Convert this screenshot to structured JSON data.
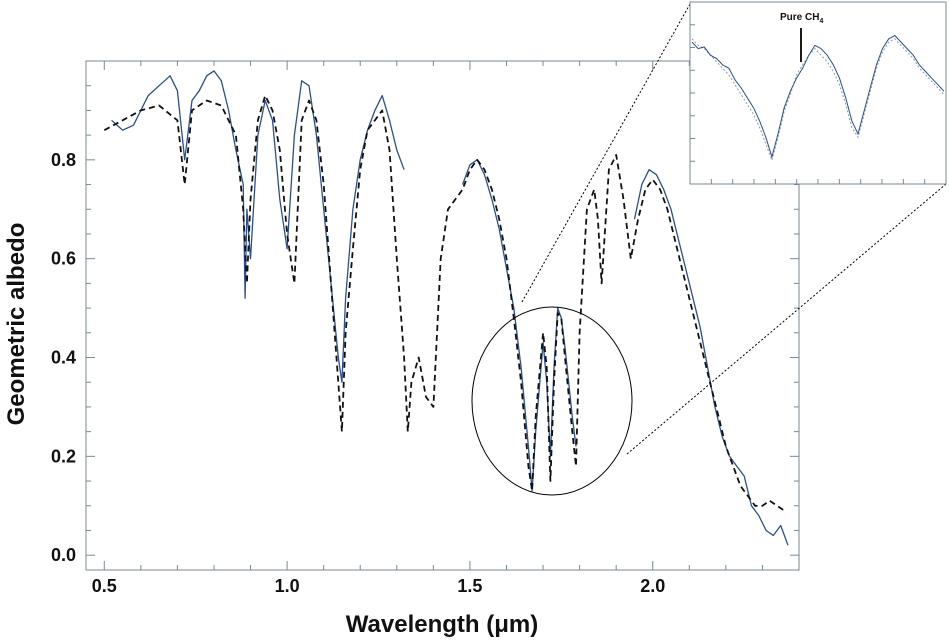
{
  "chart_data": {
    "type": "line",
    "xlabel": "Wavelength (μm)",
    "ylabel": "Geometric albedo",
    "xlim": [
      0.45,
      2.4
    ],
    "ylim": [
      -0.03,
      1.0
    ],
    "x_ticks": [
      0.5,
      1.0,
      1.5,
      2.0
    ],
    "x_tick_labels": [
      "0.5",
      "1.0",
      "1.5",
      "2.0"
    ],
    "y_ticks": [
      0.0,
      0.2,
      0.4,
      0.6,
      0.8
    ],
    "y_tick_labels": [
      "0.0",
      "0.2",
      "0.4",
      "0.6",
      "0.8"
    ],
    "grid": false,
    "colors": {
      "observed": "#2b4f8f",
      "model": "#111111"
    },
    "series": [
      {
        "style": "solid",
        "segments": [
          {
            "x": [
              0.52,
              0.55,
              0.58,
              0.6,
              0.62,
              0.65,
              0.68,
              0.7,
              0.72,
              0.74,
              0.76,
              0.78,
              0.8,
              0.82,
              0.84,
              0.86,
              0.88,
              0.885,
              0.89,
              0.9,
              0.92,
              0.94,
              0.96,
              0.98,
              1.0,
              1.02,
              1.04,
              1.06,
              1.08,
              1.1,
              1.12,
              1.14,
              1.15,
              1.16,
              1.18,
              1.2,
              1.22,
              1.24,
              1.26,
              1.28,
              1.3,
              1.32
            ],
            "y": [
              0.88,
              0.86,
              0.87,
              0.9,
              0.93,
              0.95,
              0.97,
              0.94,
              0.8,
              0.92,
              0.94,
              0.97,
              0.98,
              0.96,
              0.9,
              0.82,
              0.75,
              0.52,
              0.7,
              0.6,
              0.85,
              0.92,
              0.88,
              0.72,
              0.62,
              0.85,
              0.96,
              0.95,
              0.85,
              0.7,
              0.55,
              0.4,
              0.35,
              0.52,
              0.7,
              0.8,
              0.86,
              0.9,
              0.93,
              0.88,
              0.82,
              0.78
            ]
          },
          {
            "x": [
              1.48,
              1.5,
              1.52,
              1.54,
              1.56,
              1.58,
              1.6,
              1.62,
              1.64,
              1.66,
              1.67,
              1.68,
              1.7,
              1.71,
              1.72,
              1.73,
              1.74,
              1.75,
              1.76,
              1.78,
              1.79
            ],
            "y": [
              0.75,
              0.79,
              0.8,
              0.77,
              0.72,
              0.66,
              0.58,
              0.5,
              0.38,
              0.22,
              0.13,
              0.25,
              0.43,
              0.35,
              0.2,
              0.38,
              0.5,
              0.48,
              0.42,
              0.28,
              0.22
            ]
          },
          {
            "x": [
              1.95,
              1.97,
              1.99,
              2.01,
              2.03,
              2.05,
              2.07,
              2.09,
              2.11,
              2.13,
              2.15,
              2.17,
              2.19,
              2.21,
              2.23,
              2.25,
              2.27,
              2.29,
              2.31,
              2.33,
              2.35,
              2.37
            ],
            "y": [
              0.68,
              0.75,
              0.78,
              0.77,
              0.74,
              0.7,
              0.64,
              0.58,
              0.52,
              0.46,
              0.38,
              0.3,
              0.24,
              0.2,
              0.18,
              0.16,
              0.1,
              0.08,
              0.05,
              0.04,
              0.06,
              0.02
            ]
          }
        ]
      },
      {
        "style": "dashed",
        "segments": [
          {
            "x": [
              0.5,
              0.55,
              0.6,
              0.65,
              0.7,
              0.72,
              0.74,
              0.78,
              0.82,
              0.86,
              0.88,
              0.89,
              0.9,
              0.92,
              0.94,
              0.96,
              0.98,
              1.0,
              1.02,
              1.04,
              1.06,
              1.08,
              1.1,
              1.12,
              1.14,
              1.15,
              1.16,
              1.18,
              1.2,
              1.22,
              1.24,
              1.26,
              1.28,
              1.3,
              1.32,
              1.33,
              1.34,
              1.36,
              1.38,
              1.4,
              1.42,
              1.44,
              1.46,
              1.48,
              1.5,
              1.52,
              1.54,
              1.56,
              1.58,
              1.6,
              1.62,
              1.64,
              1.66,
              1.67,
              1.68,
              1.7,
              1.71,
              1.72,
              1.73,
              1.74,
              1.75,
              1.76,
              1.78,
              1.79,
              1.8,
              1.82,
              1.84,
              1.85,
              1.86,
              1.88,
              1.9,
              1.92,
              1.94,
              1.96,
              1.98,
              2.0,
              2.02,
              2.04,
              2.06,
              2.08,
              2.1,
              2.12,
              2.14,
              2.16,
              2.18,
              2.2,
              2.22,
              2.24,
              2.26,
              2.28,
              2.3,
              2.32,
              2.34,
              2.36
            ],
            "y": [
              0.86,
              0.88,
              0.9,
              0.91,
              0.88,
              0.75,
              0.9,
              0.92,
              0.91,
              0.85,
              0.7,
              0.55,
              0.72,
              0.88,
              0.93,
              0.9,
              0.82,
              0.65,
              0.55,
              0.88,
              0.92,
              0.88,
              0.75,
              0.55,
              0.35,
              0.25,
              0.45,
              0.62,
              0.78,
              0.86,
              0.88,
              0.9,
              0.82,
              0.6,
              0.4,
              0.25,
              0.35,
              0.4,
              0.32,
              0.3,
              0.6,
              0.7,
              0.72,
              0.74,
              0.78,
              0.8,
              0.78,
              0.74,
              0.68,
              0.6,
              0.48,
              0.35,
              0.18,
              0.13,
              0.28,
              0.45,
              0.38,
              0.15,
              0.35,
              0.49,
              0.48,
              0.4,
              0.25,
              0.18,
              0.45,
              0.7,
              0.74,
              0.68,
              0.55,
              0.78,
              0.81,
              0.72,
              0.6,
              0.68,
              0.74,
              0.76,
              0.74,
              0.7,
              0.64,
              0.58,
              0.52,
              0.46,
              0.4,
              0.34,
              0.28,
              0.22,
              0.18,
              0.14,
              0.12,
              0.1,
              0.1,
              0.11,
              0.1,
              0.09
            ]
          }
        ]
      }
    ]
  },
  "inset": {
    "annotation_text": "Pure CH",
    "annotation_subscript": "4",
    "observed_y": [
      0.78,
      0.74,
      0.75,
      0.7,
      0.68,
      0.64,
      0.62,
      0.55,
      0.5,
      0.44,
      0.38,
      0.3,
      0.2,
      0.08,
      0.22,
      0.38,
      0.48,
      0.56,
      0.62,
      0.7,
      0.76,
      0.74,
      0.7,
      0.64,
      0.56,
      0.44,
      0.3,
      0.22,
      0.36,
      0.5,
      0.64,
      0.74,
      0.8,
      0.82,
      0.78,
      0.74,
      0.7,
      0.64,
      0.6,
      0.56,
      0.52,
      0.48
    ],
    "model_y": [
      0.8,
      0.76,
      0.74,
      0.7,
      0.66,
      0.62,
      0.58,
      0.52,
      0.46,
      0.4,
      0.34,
      0.26,
      0.16,
      0.06,
      0.2,
      0.36,
      0.46,
      0.58,
      0.64,
      0.7,
      0.74,
      0.7,
      0.66,
      0.6,
      0.52,
      0.4,
      0.26,
      0.2,
      0.34,
      0.48,
      0.62,
      0.72,
      0.78,
      0.8,
      0.76,
      0.72,
      0.68,
      0.62,
      0.58,
      0.54,
      0.5,
      0.46
    ]
  }
}
